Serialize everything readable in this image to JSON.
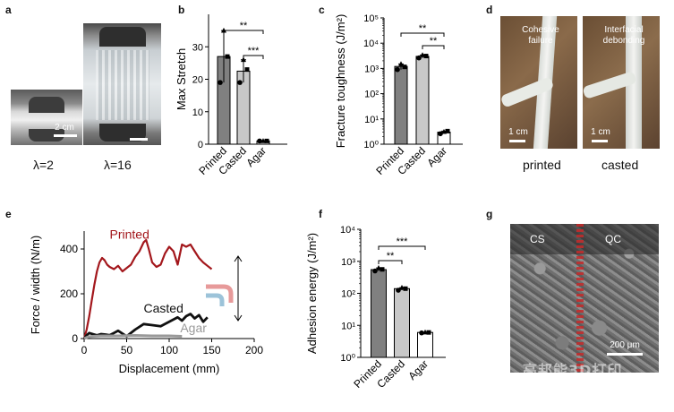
{
  "panel_labels": {
    "a": "a",
    "b": "b",
    "c": "c",
    "d": "d",
    "e": "e",
    "f": "f",
    "g": "g"
  },
  "panel_a": {
    "captions": [
      "λ=2",
      "λ=16"
    ],
    "scalebar": "2 cm"
  },
  "panel_d": {
    "overlays": [
      "Cohesive\nfailure",
      "Interfacial\ndebonding"
    ],
    "scalebars": [
      "1 cm",
      "1 cm"
    ],
    "captions": [
      "printed",
      "casted"
    ]
  },
  "panel_g": {
    "labels": [
      "CS",
      "QC"
    ],
    "scalebar": "200 μm",
    "watermark": "高邦能3D打印"
  },
  "chart_data": [
    {
      "id": "b",
      "type": "bar",
      "ylabel": "Max Stretch",
      "categories": [
        "Printed",
        "Casted",
        "Agar"
      ],
      "values": [
        27,
        22.5,
        1
      ],
      "points": [
        [
          19,
          35,
          27
        ],
        [
          19,
          26,
          23
        ],
        [
          1,
          1,
          1
        ]
      ],
      "colors": [
        "#808080",
        "#c8c8c8",
        "#ffffff"
      ],
      "yticks": [
        0,
        10,
        20,
        30
      ],
      "ylim": [
        0,
        40
      ],
      "significance": [
        {
          "from": 0,
          "to": 2,
          "label": "**"
        },
        {
          "from": 1,
          "to": 2,
          "label": "***"
        }
      ]
    },
    {
      "id": "c",
      "type": "bar",
      "scale": "log",
      "ylabel": "Fracture toughness (J/m²)",
      "categories": [
        "Printed",
        "Casted",
        "Agar"
      ],
      "values": [
        1200,
        3000,
        3
      ],
      "points": [
        [
          900,
          1500,
          1150
        ],
        [
          2600,
          3400,
          3100
        ],
        [
          2.6,
          3.1,
          3.3
        ]
      ],
      "colors": [
        "#808080",
        "#c8c8c8",
        "#ffffff"
      ],
      "ytick_labels": [
        "10⁰",
        "10¹",
        "10²",
        "10³",
        "10⁴",
        "10⁵"
      ],
      "ylim": [
        1,
        100000
      ],
      "significance": [
        {
          "from": 0,
          "to": 2,
          "label": "**"
        },
        {
          "from": 1,
          "to": 2,
          "label": "**"
        }
      ]
    },
    {
      "id": "e",
      "type": "line",
      "xlabel": "Displacement (mm)",
      "ylabel": "Force / width (N/m)",
      "xlim": [
        0,
        200
      ],
      "ylim": [
        0,
        480
      ],
      "xticks": [
        0,
        50,
        100,
        150,
        200
      ],
      "yticks": [
        0,
        200,
        400
      ],
      "series": [
        {
          "name": "Printed",
          "color": "#a3171c",
          "x": [
            0,
            3,
            6,
            9,
            12,
            15,
            18,
            21,
            24,
            27,
            30,
            35,
            40,
            45,
            50,
            55,
            60,
            65,
            70,
            73,
            76,
            80,
            85,
            90,
            95,
            100,
            105,
            110,
            115,
            120,
            125,
            130,
            135,
            140,
            145,
            150
          ],
          "y": [
            0,
            40,
            100,
            170,
            240,
            300,
            340,
            360,
            350,
            330,
            320,
            310,
            325,
            300,
            315,
            330,
            365,
            390,
            430,
            440,
            400,
            340,
            320,
            330,
            380,
            410,
            390,
            330,
            420,
            410,
            420,
            390,
            360,
            340,
            325,
            310
          ]
        },
        {
          "name": "Casted",
          "color": "#111111",
          "x": [
            0,
            3,
            6,
            10,
            15,
            20,
            25,
            30,
            40,
            50,
            60,
            70,
            80,
            90,
            100,
            110,
            115,
            120,
            125,
            130,
            135,
            140,
            145
          ],
          "y": [
            0,
            15,
            25,
            20,
            15,
            20,
            18,
            15,
            35,
            10,
            40,
            65,
            60,
            55,
            75,
            95,
            80,
            100,
            110,
            90,
            105,
            75,
            95
          ]
        },
        {
          "name": "Agar",
          "color": "#999999",
          "x": [
            0,
            5,
            10,
            20,
            40,
            60,
            80,
            100,
            115
          ],
          "y": [
            0,
            8,
            10,
            12,
            12,
            14,
            12,
            12,
            10
          ]
        }
      ]
    },
    {
      "id": "f",
      "type": "bar",
      "scale": "log",
      "ylabel": "Adhesion energy (J/m²)",
      "categories": [
        "Printed",
        "Casted",
        "Agar"
      ],
      "values": [
        550,
        140,
        6
      ],
      "points": [
        [
          500,
          620,
          560
        ],
        [
          125,
          150,
          140
        ],
        [
          5.8,
          6.1,
          6.0
        ]
      ],
      "colors": [
        "#808080",
        "#c8c8c8",
        "#ffffff"
      ],
      "ytick_labels": [
        "10⁰",
        "10¹",
        "10²",
        "10³",
        "10⁴"
      ],
      "ylim": [
        1,
        10000
      ],
      "significance": [
        {
          "from": 0,
          "to": 1,
          "label": "**"
        },
        {
          "from": 0,
          "to": 2,
          "label": "***"
        }
      ]
    }
  ]
}
